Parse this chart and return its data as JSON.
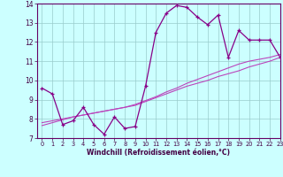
{
  "x": [
    0,
    1,
    2,
    3,
    4,
    5,
    6,
    7,
    8,
    9,
    10,
    11,
    12,
    13,
    14,
    15,
    16,
    17,
    18,
    19,
    20,
    21,
    22,
    23
  ],
  "y_main": [
    9.6,
    9.3,
    7.7,
    7.9,
    8.6,
    7.7,
    7.2,
    8.1,
    7.5,
    7.6,
    9.7,
    12.5,
    13.5,
    13.9,
    13.8,
    13.3,
    12.9,
    13.4,
    11.2,
    12.6,
    12.1,
    12.1,
    12.1,
    11.2
  ],
  "y_trend1": [
    7.8,
    7.9,
    8.0,
    8.1,
    8.2,
    8.3,
    8.4,
    8.5,
    8.6,
    8.7,
    8.9,
    9.1,
    9.3,
    9.5,
    9.7,
    9.85,
    10.0,
    10.2,
    10.35,
    10.5,
    10.7,
    10.85,
    11.0,
    11.2
  ],
  "y_trend2": [
    7.65,
    7.8,
    7.95,
    8.1,
    8.2,
    8.3,
    8.4,
    8.5,
    8.6,
    8.75,
    8.95,
    9.15,
    9.4,
    9.6,
    9.85,
    10.05,
    10.25,
    10.45,
    10.65,
    10.85,
    11.0,
    11.1,
    11.2,
    11.35
  ],
  "main_color": "#880088",
  "trend_color1": "#bb44bb",
  "trend_color2": "#bb44bb",
  "bg_color": "#ccffff",
  "grid_color": "#99cccc",
  "axis_color": "#440044",
  "spine_color": "#660066",
  "xlabel": "Windchill (Refroidissement éolien,°C)",
  "xlim": [
    -0.5,
    23
  ],
  "ylim": [
    7,
    14
  ],
  "yticks": [
    7,
    8,
    9,
    10,
    11,
    12,
    13,
    14
  ],
  "xticks": [
    0,
    1,
    2,
    3,
    4,
    5,
    6,
    7,
    8,
    9,
    10,
    11,
    12,
    13,
    14,
    15,
    16,
    17,
    18,
    19,
    20,
    21,
    22,
    23
  ]
}
